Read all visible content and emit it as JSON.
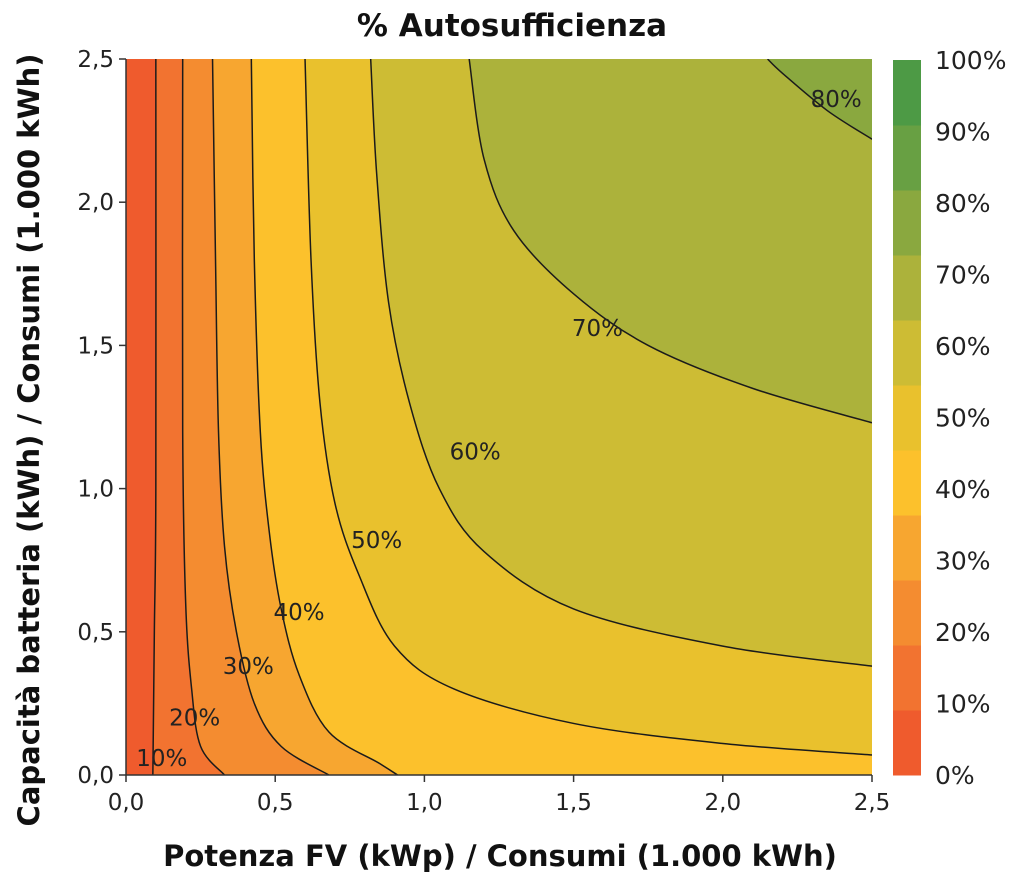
{
  "chart_data": {
    "type": "contour",
    "title": "% Autosufficienza",
    "xlabel": "Potenza FV (kWp) / Consumi (1.000 kWh)",
    "ylabel": "Capacità batteria (kWh) / Consumi (1.000 kWh)",
    "xlim": [
      0,
      2.5
    ],
    "ylim": [
      0,
      2.5
    ],
    "x_ticks": [
      "0,0",
      "0,5",
      "1,0",
      "1,5",
      "2,0",
      "2,5"
    ],
    "y_ticks": [
      "0,0",
      "0,5",
      "1,0",
      "1,5",
      "2,0",
      "2,5"
    ],
    "colorbar": {
      "ticks": [
        "0%",
        "10%",
        "20%",
        "30%",
        "40%",
        "50%",
        "60%",
        "70%",
        "80%",
        "90%",
        "100%"
      ],
      "colors": [
        "#ef5b2d",
        "#f27330",
        "#f48c30",
        "#f7a630",
        "#fcc12c",
        "#e9c12d",
        "#cdbc34",
        "#acb23b",
        "#8aa83f",
        "#68a043",
        "#4d9a45"
      ]
    },
    "contours": [
      {
        "level": 10,
        "label": "10%",
        "label_at": [
          0.12,
          0.06
        ],
        "points": [
          [
            0.09,
            0.0
          ],
          [
            0.095,
            0.5
          ],
          [
            0.1,
            1.0
          ],
          [
            0.1,
            2.5
          ]
        ]
      },
      {
        "level": 20,
        "label": "20%",
        "label_at": [
          0.23,
          0.2
        ],
        "points": [
          [
            0.33,
            0.0
          ],
          [
            0.25,
            0.1
          ],
          [
            0.22,
            0.3
          ],
          [
            0.2,
            0.6
          ],
          [
            0.19,
            1.2
          ],
          [
            0.19,
            2.5
          ]
        ]
      },
      {
        "level": 30,
        "label": "30%",
        "label_at": [
          0.41,
          0.38
        ],
        "points": [
          [
            0.68,
            0.0
          ],
          [
            0.52,
            0.1
          ],
          [
            0.43,
            0.25
          ],
          [
            0.37,
            0.5
          ],
          [
            0.33,
            0.8
          ],
          [
            0.31,
            1.2
          ],
          [
            0.3,
            1.8
          ],
          [
            0.29,
            2.5
          ]
        ]
      },
      {
        "level": 40,
        "label": "40%",
        "label_at": [
          0.58,
          0.57
        ],
        "points": [
          [
            0.91,
            0.0
          ],
          [
            0.85,
            0.04
          ],
          [
            0.68,
            0.15
          ],
          [
            0.58,
            0.35
          ],
          [
            0.52,
            0.58
          ],
          [
            0.48,
            0.85
          ],
          [
            0.45,
            1.2
          ],
          [
            0.43,
            1.8
          ],
          [
            0.42,
            2.5
          ]
        ]
      },
      {
        "level": 50,
        "label": "50%",
        "label_at": [
          0.84,
          0.82
        ],
        "points": [
          [
            2.5,
            0.07
          ],
          [
            2.0,
            0.11
          ],
          [
            1.5,
            0.18
          ],
          [
            1.1,
            0.3
          ],
          [
            0.9,
            0.45
          ],
          [
            0.78,
            0.7
          ],
          [
            0.7,
            0.95
          ],
          [
            0.65,
            1.3
          ],
          [
            0.62,
            1.8
          ],
          [
            0.6,
            2.5
          ]
        ]
      },
      {
        "level": 60,
        "label": "60%",
        "label_at": [
          1.17,
          1.13
        ],
        "points": [
          [
            2.5,
            0.38
          ],
          [
            2.0,
            0.45
          ],
          [
            1.5,
            0.58
          ],
          [
            1.2,
            0.78
          ],
          [
            1.05,
            1.0
          ],
          [
            0.95,
            1.3
          ],
          [
            0.88,
            1.65
          ],
          [
            0.84,
            2.1
          ],
          [
            0.82,
            2.5
          ]
        ]
      },
      {
        "level": 70,
        "label": "70%",
        "label_at": [
          1.58,
          1.56
        ],
        "points": [
          [
            2.5,
            1.23
          ],
          [
            2.1,
            1.35
          ],
          [
            1.75,
            1.5
          ],
          [
            1.5,
            1.68
          ],
          [
            1.3,
            1.9
          ],
          [
            1.2,
            2.15
          ],
          [
            1.15,
            2.5
          ]
        ]
      },
      {
        "level": 80,
        "label": "80%",
        "label_at": [
          2.38,
          2.36
        ],
        "points": [
          [
            2.5,
            2.22
          ],
          [
            2.35,
            2.32
          ],
          [
            2.2,
            2.45
          ],
          [
            2.15,
            2.5
          ]
        ]
      }
    ]
  }
}
